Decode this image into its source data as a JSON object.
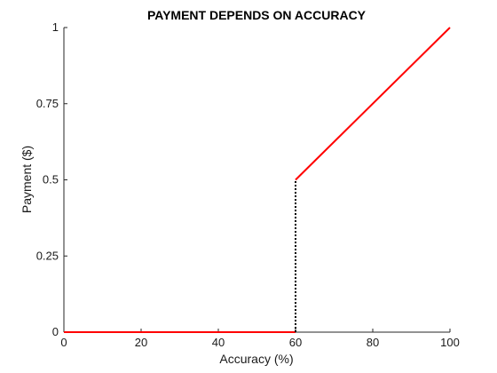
{
  "chart_data": {
    "type": "line",
    "title": "PAYMENT DEPENDS ON ACCURACY",
    "xlabel": "Accuracy (%)",
    "ylabel": "Payment ($)",
    "xlim": [
      0,
      100
    ],
    "ylim": [
      0,
      1
    ],
    "x_ticks": [
      0,
      20,
      40,
      60,
      80,
      100
    ],
    "x_tick_labels": [
      "0",
      "20",
      "40",
      "60",
      "80",
      "100"
    ],
    "y_ticks": [
      0,
      0.25,
      0.5,
      0.75,
      1
    ],
    "y_tick_labels": [
      "0",
      "0.25",
      "0.5",
      "0.75",
      "1"
    ],
    "grid": false,
    "series": [
      {
        "style": "solid",
        "color": "#ff0000",
        "segments": [
          {
            "x": [
              0,
              60
            ],
            "y": [
              0,
              0
            ]
          },
          {
            "x": [
              60,
              100
            ],
            "y": [
              0.5,
              1
            ]
          }
        ]
      },
      {
        "style": "dotted",
        "color": "#000000",
        "segments": [
          {
            "x": [
              60,
              60
            ],
            "y": [
              0,
              0.5
            ]
          }
        ]
      }
    ]
  }
}
